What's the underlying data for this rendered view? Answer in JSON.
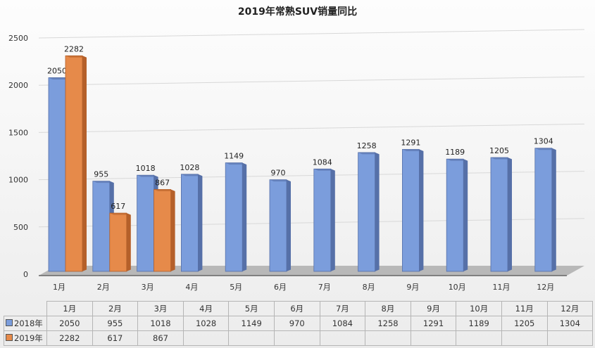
{
  "chart_data": {
    "type": "bar",
    "title": "2019年常熟SUV销量同比",
    "categories": [
      "1月",
      "2月",
      "3月",
      "4月",
      "5月",
      "6月",
      "7月",
      "8月",
      "9月",
      "10月",
      "11月",
      "12月"
    ],
    "series": [
      {
        "name": "2018年",
        "color": "#7b9ddc",
        "values": [
          2050,
          955,
          1018,
          1028,
          1149,
          970,
          1084,
          1258,
          1291,
          1189,
          1205,
          1304
        ]
      },
      {
        "name": "2019年",
        "color": "#e68a4a",
        "values": [
          2282,
          617,
          867,
          null,
          null,
          null,
          null,
          null,
          null,
          null,
          null,
          null
        ]
      }
    ],
    "yticks": [
      0,
      500,
      1000,
      1500,
      2000,
      2500
    ],
    "ylim": [
      0,
      2500
    ],
    "grid": true,
    "legend": "data-table-bottom"
  }
}
